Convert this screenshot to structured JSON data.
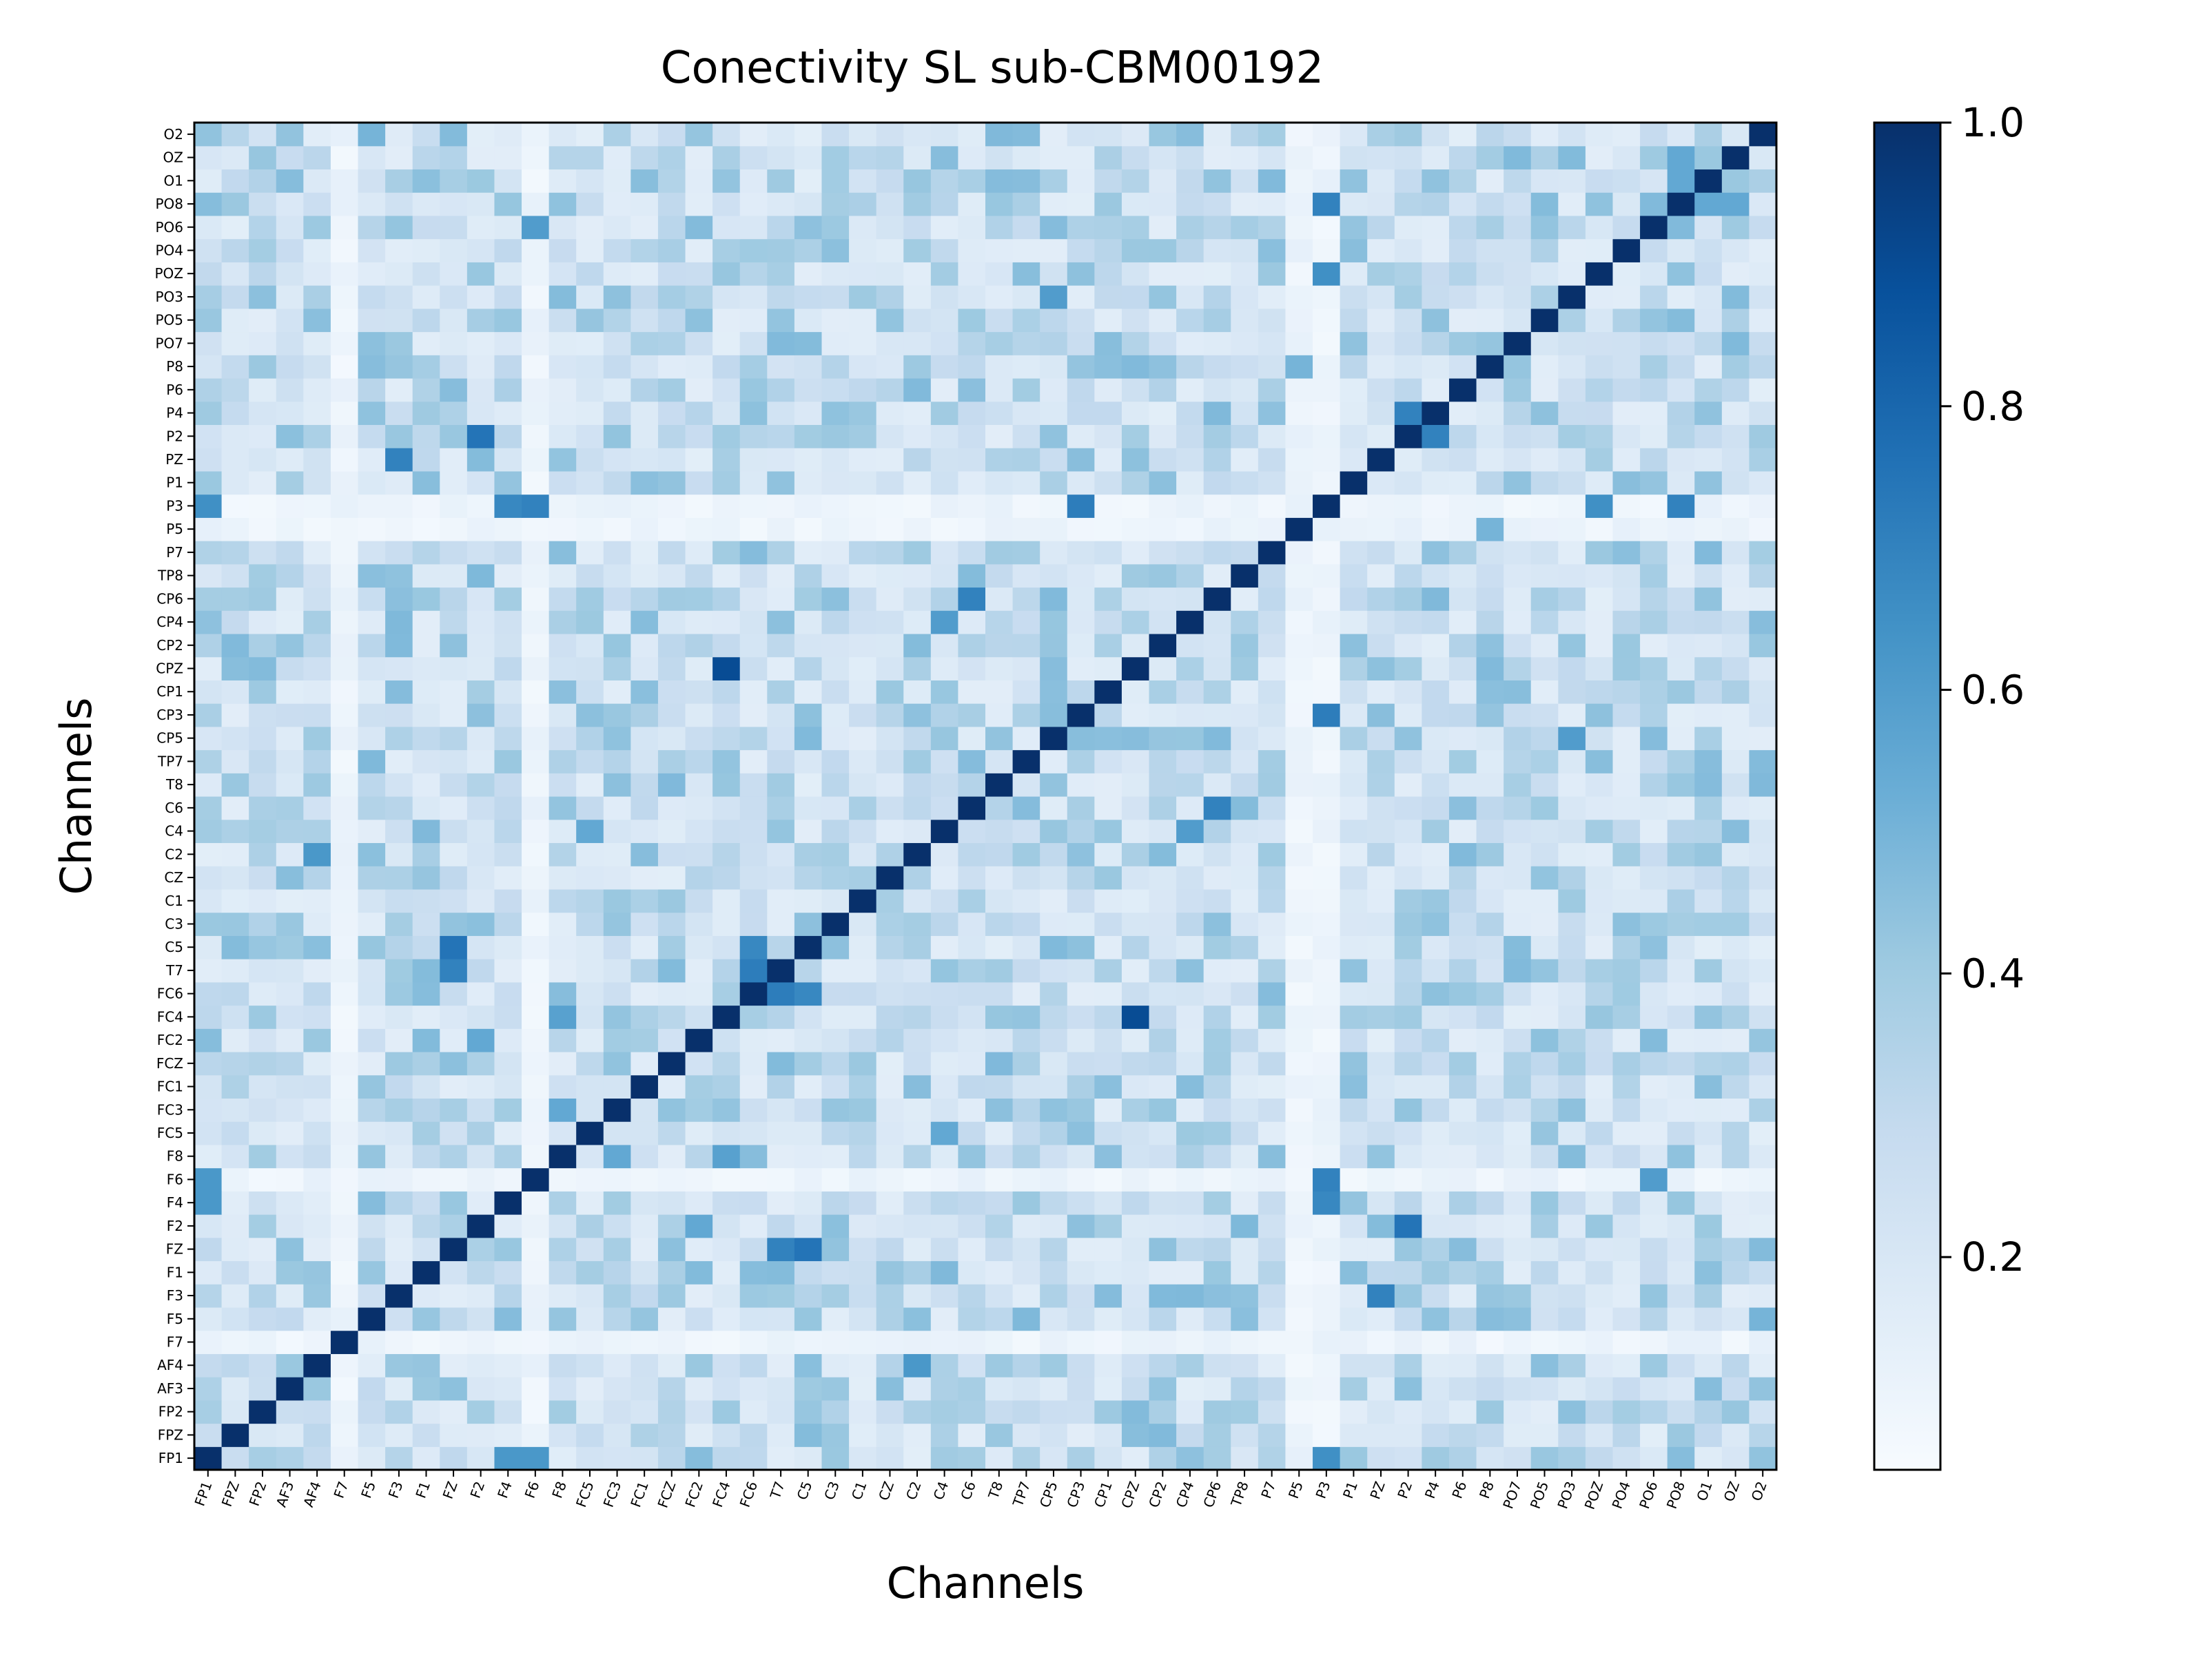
{
  "chart_data": {
    "type": "heatmap",
    "title": "Conectivity SL sub-CBM00192",
    "xlabel": "Channels",
    "ylabel": "Channels",
    "channels": [
      "FP1",
      "FPZ",
      "FP2",
      "AF3",
      "AF4",
      "F7",
      "F5",
      "F3",
      "F1",
      "FZ",
      "F2",
      "F4",
      "F6",
      "F8",
      "FC5",
      "FC3",
      "FC1",
      "FCZ",
      "FC2",
      "FC4",
      "FC6",
      "T7",
      "C5",
      "C3",
      "C1",
      "CZ",
      "C2",
      "C4",
      "C6",
      "T8",
      "TP7",
      "CP5",
      "CP3",
      "CP1",
      "CPZ",
      "CP2",
      "CP4",
      "CP6",
      "TP8",
      "P7",
      "P5",
      "P3",
      "P1",
      "PZ",
      "P2",
      "P4",
      "P6",
      "P8",
      "PO7",
      "PO5",
      "PO3",
      "POZ",
      "PO4",
      "PO6",
      "PO8",
      "O1",
      "OZ",
      "O2"
    ],
    "diagonal_value": 1.0,
    "colormap": "Blues",
    "colorbar": {
      "min": 0.05,
      "max": 1.0,
      "ticks": [
        0.2,
        0.4,
        0.6,
        0.8,
        1.0
      ],
      "tick_labels": [
        "0.2",
        "0.4",
        "0.6",
        "0.8",
        "1.0"
      ]
    },
    "low_channels": [
      "F7",
      "P5",
      "F6",
      "P3"
    ],
    "strong_pairs": [
      {
        "a": "FC4",
        "b": "CPZ",
        "value": 0.9
      },
      {
        "a": "FZ",
        "b": "C5",
        "value": 0.75
      },
      {
        "a": "FZ",
        "b": "T7",
        "value": 0.7
      },
      {
        "a": "F3",
        "b": "PZ",
        "value": 0.7
      },
      {
        "a": "F2",
        "b": "P2",
        "value": 0.75
      },
      {
        "a": "FC6",
        "b": "T7",
        "value": 0.72
      },
      {
        "a": "FC6",
        "b": "C5",
        "value": 0.68
      },
      {
        "a": "C6",
        "b": "CP6",
        "value": 0.7
      },
      {
        "a": "CP3",
        "b": "P3",
        "value": 0.72
      },
      {
        "a": "P3",
        "b": "PO8",
        "value": 0.7
      },
      {
        "a": "P3",
        "b": "POZ",
        "value": 0.65
      },
      {
        "a": "P3",
        "b": "FP1",
        "value": 0.65
      },
      {
        "a": "P3",
        "b": "F4",
        "value": 0.68
      },
      {
        "a": "P3",
        "b": "F6",
        "value": 0.7
      },
      {
        "a": "P2",
        "b": "P4",
        "value": 0.7
      },
      {
        "a": "PO8",
        "b": "OZ",
        "value": 0.55
      },
      {
        "a": "PO8",
        "b": "O1",
        "value": 0.55
      },
      {
        "a": "C4",
        "b": "CP4",
        "value": 0.6
      },
      {
        "a": "F6",
        "b": "FP1",
        "value": 0.62
      },
      {
        "a": "F4",
        "b": "FP1",
        "value": 0.62
      },
      {
        "a": "F6",
        "b": "PO6",
        "value": 0.6
      },
      {
        "a": "F5",
        "b": "O2",
        "value": 0.5
      },
      {
        "a": "AF4",
        "b": "C2",
        "value": 0.62
      },
      {
        "a": "FC3",
        "b": "F8",
        "value": 0.55
      },
      {
        "a": "FC4",
        "b": "F8",
        "value": 0.58
      },
      {
        "a": "PO3",
        "b": "CP5",
        "value": 0.6
      },
      {
        "a": "FC2",
        "b": "F2",
        "value": 0.55
      },
      {
        "a": "C4",
        "b": "FC5",
        "value": 0.55
      },
      {
        "a": "P8",
        "b": "P5",
        "value": 0.5
      }
    ]
  }
}
